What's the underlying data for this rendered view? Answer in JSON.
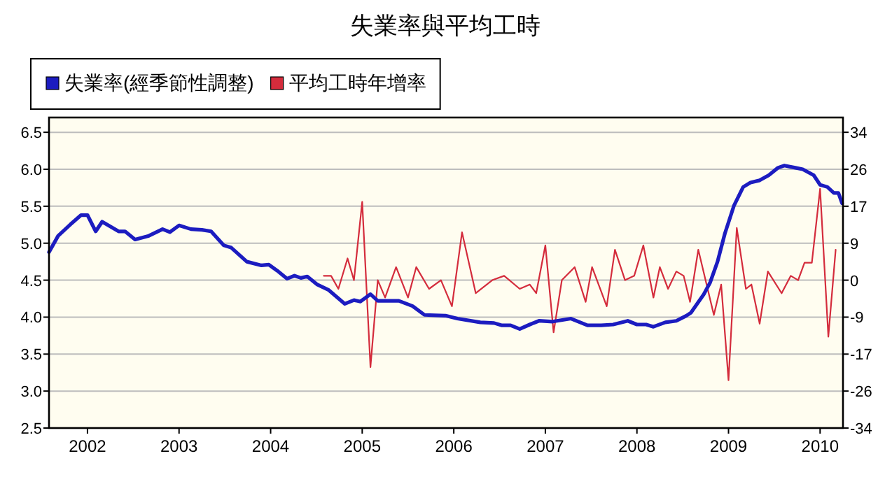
{
  "chart_data": {
    "type": "line",
    "title": "失業率與平均工時",
    "series": [
      {
        "name": "失業率(經季節性調整)",
        "color": "#1c1cc0",
        "x": [
          2001.58,
          2001.68,
          2001.81,
          2001.93,
          2002.0,
          2002.09,
          2002.16,
          2002.34,
          2002.41,
          2002.52,
          2002.67,
          2002.82,
          2002.9,
          2003.0,
          2003.13,
          2003.25,
          2003.35,
          2003.49,
          2003.57,
          2003.74,
          2003.9,
          2003.98,
          2004.07,
          2004.18,
          2004.26,
          2004.33,
          2004.4,
          2004.51,
          2004.63,
          2004.81,
          2004.91,
          2004.98,
          2005.09,
          2005.17,
          2005.4,
          2005.55,
          2005.68,
          2005.91,
          2006.04,
          2006.29,
          2006.44,
          2006.52,
          2006.62,
          2006.72,
          2006.83,
          2006.93,
          2007.08,
          2007.28,
          2007.46,
          2007.61,
          2007.74,
          2007.9,
          2008.0,
          2008.1,
          2008.18,
          2008.31,
          2008.43,
          2008.54,
          2008.59,
          2008.73,
          2008.8,
          2008.88,
          2008.96,
          2009.06,
          2009.16,
          2009.24,
          2009.34,
          2009.44,
          2009.54,
          2009.61,
          2009.73,
          2009.81,
          2009.93,
          2010.0,
          2010.08,
          2010.15,
          2010.2,
          2010.24
        ],
        "values": [
          4.88,
          5.1,
          5.25,
          5.38,
          5.38,
          5.16,
          5.29,
          5.16,
          5.16,
          5.05,
          5.1,
          5.19,
          5.15,
          5.24,
          5.19,
          5.18,
          5.16,
          4.97,
          4.94,
          4.75,
          4.7,
          4.71,
          4.63,
          4.52,
          4.56,
          4.53,
          4.55,
          4.44,
          4.37,
          4.18,
          4.23,
          4.21,
          4.31,
          4.22,
          4.22,
          4.15,
          4.03,
          4.02,
          3.98,
          3.93,
          3.92,
          3.89,
          3.89,
          3.84,
          3.9,
          3.95,
          3.94,
          3.98,
          3.89,
          3.89,
          3.9,
          3.95,
          3.9,
          3.9,
          3.87,
          3.93,
          3.95,
          4.02,
          4.06,
          4.31,
          4.47,
          4.75,
          5.13,
          5.51,
          5.76,
          5.82,
          5.85,
          5.92,
          6.02,
          6.05,
          6.02,
          6.0,
          5.92,
          5.79,
          5.76,
          5.68,
          5.68,
          5.54
        ]
      },
      {
        "name": "平均工時年增率",
        "color": "#d42c3c",
        "axis": "y2",
        "x": [
          2004.58,
          2004.66,
          2004.74,
          2004.84,
          2004.91,
          2005.0,
          2005.09,
          2005.17,
          2005.25,
          2005.37,
          2005.5,
          2005.59,
          2005.73,
          2005.86,
          2005.98,
          2006.09,
          2006.24,
          2006.42,
          2006.55,
          2006.72,
          2006.83,
          2006.9,
          2007.0,
          2007.09,
          2007.18,
          2007.32,
          2007.44,
          2007.51,
          2007.67,
          2007.76,
          2007.87,
          2007.97,
          2008.07,
          2008.18,
          2008.25,
          2008.34,
          2008.43,
          2008.51,
          2008.58,
          2008.67,
          2008.84,
          2008.92,
          2009.0,
          2009.09,
          2009.19,
          2009.25,
          2009.34,
          2009.43,
          2009.58,
          2009.68,
          2009.76,
          2009.83,
          2009.91,
          2010.0,
          2010.09,
          2010.17
        ],
        "values": [
          1,
          1,
          -2,
          5,
          0,
          18,
          -20,
          0,
          -4,
          3,
          -4,
          3,
          -2,
          0,
          -6,
          11,
          -3,
          0,
          1,
          -2,
          -1,
          -3,
          8,
          -12,
          0,
          3,
          -5,
          3,
          -6,
          7,
          0,
          1,
          8,
          -4,
          3,
          -2,
          2,
          1,
          -5,
          7,
          -8,
          -1,
          -23,
          12,
          -2,
          -1,
          -10,
          2,
          -3,
          1,
          0,
          4,
          4,
          21,
          -13,
          7
        ]
      }
    ],
    "xlim": [
      2001.58,
      2010.25
    ],
    "xticks": [
      2002,
      2003,
      2004,
      2005,
      2006,
      2007,
      2008,
      2009,
      2010
    ],
    "ylim": [
      2.5,
      6.7
    ],
    "yticks": [
      {
        "value": 2.5,
        "label": "2.5"
      },
      {
        "value": 3,
        "label": "3.0"
      },
      {
        "value": 3.5,
        "label": "3.5"
      },
      {
        "value": 4,
        "label": "4.0"
      },
      {
        "value": 4.5,
        "label": "4.5"
      },
      {
        "value": 5,
        "label": "5.0"
      },
      {
        "value": 5.5,
        "label": "5.5"
      },
      {
        "value": 6,
        "label": "6.0"
      },
      {
        "value": 6.5,
        "label": "6.5"
      }
    ],
    "y2lim": [
      -34,
      37.4
    ],
    "y2ticks": [
      -34,
      {
        "value": -25.5,
        "label": "-26"
      },
      -17,
      {
        "value": -8.5,
        "label": "-9"
      },
      0,
      {
        "value": 8.5,
        "label": "9"
      },
      17,
      {
        "value": 25.5,
        "label": "26"
      },
      34
    ],
    "grid": "y",
    "legend": "top left"
  }
}
